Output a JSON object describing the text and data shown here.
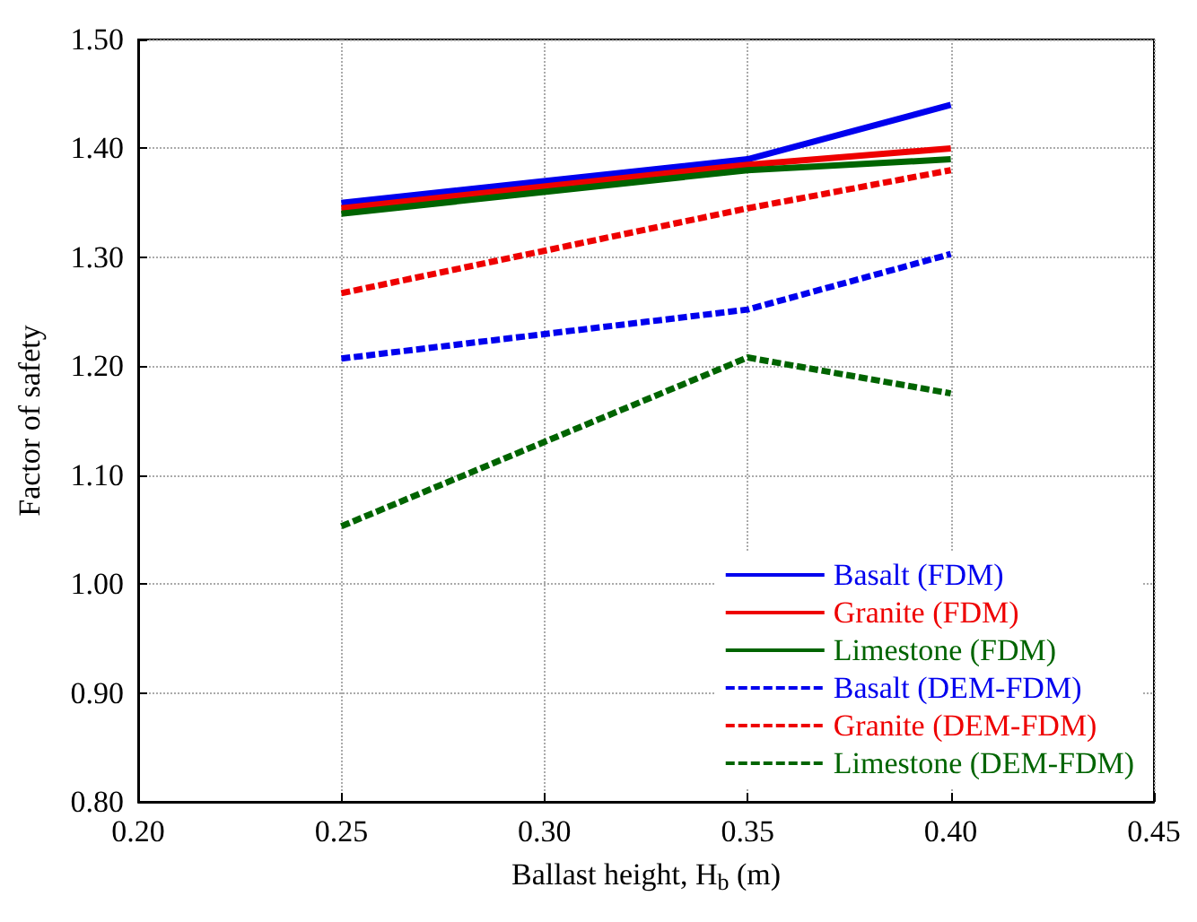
{
  "chart_data": {
    "type": "line",
    "xlabel": "Ballast height, H$_{b}$ (m)",
    "ylabel": "Factor of safety",
    "x": [
      0.25,
      0.35,
      0.4
    ],
    "series": [
      {
        "name": "Basalt (FDM)",
        "color": "#0000ee",
        "values": [
          1.35,
          1.39,
          1.44
        ],
        "line_style": "solid"
      },
      {
        "name": "Granite (FDM)",
        "color": "#ee0000",
        "values": [
          1.345,
          1.385,
          1.4
        ],
        "line_style": "solid"
      },
      {
        "name": "Limestone (FDM)",
        "color": "#006400",
        "values": [
          1.34,
          1.38,
          1.39
        ],
        "line_style": "solid"
      },
      {
        "name": "Basalt (DEM-FDM)",
        "color": "#0000ee",
        "values": [
          1.207,
          1.252,
          1.303
        ],
        "line_style": "dashed"
      },
      {
        "name": "Granite (DEM-FDM)",
        "color": "#ee0000",
        "values": [
          1.267,
          1.345,
          1.38
        ],
        "line_style": "dashed"
      },
      {
        "name": "Limestone (DEM-FDM)",
        "color": "#006400",
        "values": [
          1.053,
          1.208,
          1.175
        ],
        "line_style": "dashed"
      }
    ],
    "xlim": [
      0.2,
      0.45
    ],
    "xticks": [
      {
        "value": 0.2,
        "label": "0.20"
      },
      {
        "value": 0.25,
        "label": "0.25"
      },
      {
        "value": 0.3,
        "label": "0.30"
      },
      {
        "value": 0.35,
        "label": "0.35"
      },
      {
        "value": 0.4,
        "label": "0.40"
      },
      {
        "value": 0.45,
        "label": "0.45"
      }
    ],
    "ylim": [
      0.8,
      1.5
    ],
    "yticks": [
      {
        "value": 0.8,
        "label": "0.80"
      },
      {
        "value": 0.9,
        "label": "0.90"
      },
      {
        "value": 1.0,
        "label": "1.00"
      },
      {
        "value": 1.1,
        "label": "1.10"
      },
      {
        "value": 1.2,
        "label": "1.20"
      },
      {
        "value": 1.3,
        "label": "1.30"
      },
      {
        "value": 1.4,
        "label": "1.40"
      },
      {
        "value": 1.5,
        "label": "1.50"
      }
    ],
    "grid": true,
    "legend": "bottom right",
    "marker": "none"
  }
}
